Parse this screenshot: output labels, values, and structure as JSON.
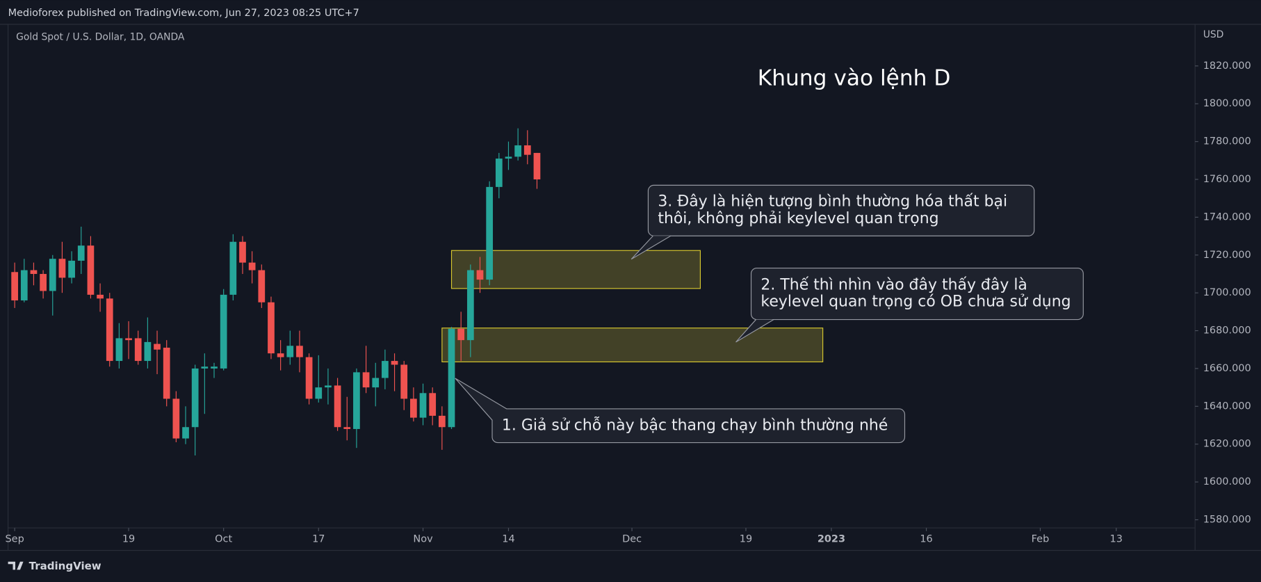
{
  "chart_data": {
    "type": "candlestick",
    "header": "Medioforex published on TradingView.com, Jun 27, 2023 08:25 UTC+7",
    "symbol": "Gold Spot / U.S. Dollar, 1D, OANDA",
    "currency": "USD",
    "title": "Khung vào lệnh D",
    "footer": "TradingView",
    "up_color": "#26a69a",
    "down_color": "#ef5350",
    "open": [
      1711,
      1696,
      1712,
      1710,
      1701,
      1718,
      1708,
      1717,
      1725,
      1699,
      1697,
      1664,
      1676,
      1676,
      1664,
      1673,
      1671,
      1644,
      1623,
      1629,
      1660,
      1660,
      1660,
      1699,
      1727,
      1716,
      1712,
      1695,
      1668,
      1666,
      1672,
      1666,
      1644,
      1650,
      1651,
      1629,
      1628,
      1658,
      1650,
      1655,
      1664,
      1662,
      1644,
      1634,
      1647,
      1635,
      1629,
      1681,
      1675,
      1712,
      1707,
      1756,
      1771,
      1772,
      1778,
      1774
    ],
    "high": [
      1716,
      1718,
      1716,
      1712,
      1720,
      1727,
      1722,
      1735,
      1730,
      1705,
      1700,
      1684,
      1685,
      1680,
      1687,
      1680,
      1675,
      1648,
      1640,
      1662,
      1668,
      1663,
      1702,
      1731,
      1730,
      1722,
      1715,
      1698,
      1675,
      1680,
      1680,
      1668,
      1667,
      1660,
      1655,
      1645,
      1660,
      1672,
      1663,
      1670,
      1668,
      1664,
      1650,
      1652,
      1650,
      1640,
      1682,
      1690,
      1715,
      1719,
      1759,
      1774,
      1780,
      1787,
      1786,
      1774
    ],
    "low": [
      1692,
      1695,
      1704,
      1697,
      1688,
      1700,
      1705,
      1710,
      1697,
      1690,
      1661,
      1660,
      1665,
      1662,
      1660,
      1657,
      1640,
      1621,
      1620,
      1614,
      1636,
      1655,
      1659,
      1696,
      1710,
      1705,
      1692,
      1665,
      1659,
      1662,
      1658,
      1641,
      1642,
      1641,
      1627,
      1622,
      1618,
      1647,
      1640,
      1649,
      1648,
      1638,
      1632,
      1630,
      1630,
      1617,
      1628,
      1664,
      1666,
      1700,
      1704,
      1750,
      1765,
      1770,
      1768,
      1755
    ],
    "close": [
      1696,
      1712,
      1710,
      1701,
      1718,
      1708,
      1717,
      1725,
      1699,
      1697,
      1664,
      1676,
      1675,
      1664,
      1674,
      1670,
      1644,
      1623,
      1629,
      1660,
      1661,
      1661,
      1699,
      1727,
      1716,
      1712,
      1695,
      1668,
      1666,
      1672,
      1666,
      1644,
      1650,
      1651,
      1629,
      1628,
      1658,
      1650,
      1655,
      1664,
      1662,
      1644,
      1634,
      1647,
      1635,
      1629,
      1681,
      1675,
      1712,
      1707,
      1756,
      1771,
      1772,
      1778,
      1773,
      1760
    ],
    "xlim": [
      -0.7,
      124.3
    ],
    "xticks": [
      {
        "value": 0,
        "label": "Sep"
      },
      {
        "value": 12,
        "label": "19"
      },
      {
        "value": 22,
        "label": "Oct"
      },
      {
        "value": 32,
        "label": "17"
      },
      {
        "value": 43,
        "label": "Nov"
      },
      {
        "value": 52,
        "label": "14"
      },
      {
        "value": 65,
        "label": "Dec"
      },
      {
        "value": 77,
        "label": "19"
      },
      {
        "value": 86,
        "label": "2023"
      },
      {
        "value": 96,
        "label": "16"
      },
      {
        "value": 108,
        "label": "Feb"
      },
      {
        "value": 116,
        "label": "13"
      }
    ],
    "ylim": [
      1575.7,
      1842
    ],
    "yticks": [
      {
        "value": 1580,
        "label": "1580.000"
      },
      {
        "value": 1600,
        "label": "1600.000"
      },
      {
        "value": 1620,
        "label": "1620.000"
      },
      {
        "value": 1640,
        "label": "1640.000"
      },
      {
        "value": 1660,
        "label": "1660.000"
      },
      {
        "value": 1680,
        "label": "1680.000"
      },
      {
        "value": 1700,
        "label": "1700.000"
      },
      {
        "value": 1720,
        "label": "1720.000"
      },
      {
        "value": 1740,
        "label": "1740.000"
      },
      {
        "value": 1760,
        "label": "1760.000"
      },
      {
        "value": 1780,
        "label": "1780.000"
      },
      {
        "value": 1800,
        "label": "1800.000"
      },
      {
        "value": 1820,
        "label": "1820.000"
      }
    ],
    "zones": [
      {
        "start": 46,
        "end": 72.2,
        "top": 1722.4,
        "bottom": 1702.3
      },
      {
        "start": 45,
        "end": 85.1,
        "top": 1681.4,
        "bottom": 1663.5
      }
    ],
    "annotations": [
      {
        "lines": [
          "3. Đây là hiện tượng bình thường hóa thất bại",
          "thôi, không phải keylevel quan trọng"
        ]
      },
      {
        "lines": [
          "2. Thế thì nhìn vào đây thấy đây là",
          "keylevel quan trọng có OB chưa sử dụng"
        ]
      },
      {
        "lines": [
          "1. Giả sử chỗ này bậc thang chạy bình thường nhé"
        ]
      }
    ]
  }
}
